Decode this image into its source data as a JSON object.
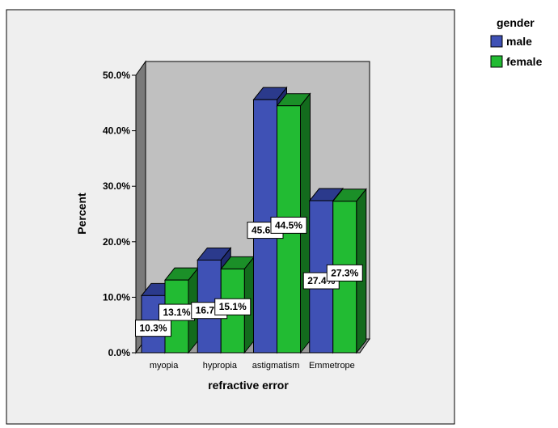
{
  "chart_data": {
    "type": "bar",
    "categories": [
      "myopia",
      "hypropia",
      "astigmatism",
      "Emmetrope"
    ],
    "series": [
      {
        "name": "male",
        "values": [
          10.3,
          16.7,
          45.6,
          27.4
        ],
        "labels": [
          "10.3%",
          "16.7%",
          "45.6%",
          "27.4%"
        ],
        "color": "#3f51b5",
        "top_color": "#2b3a8c",
        "side_color": "#1f2a6e"
      },
      {
        "name": "female",
        "values": [
          13.1,
          15.1,
          44.5,
          27.3
        ],
        "labels": [
          "13.1%",
          "15.1%",
          "44.5%",
          "27.3%"
        ],
        "color": "#22bb33",
        "top_color": "#1b8f28",
        "side_color": "#136b1d"
      }
    ],
    "xlabel": "refractive error",
    "ylabel": "Percent",
    "ylim": [
      0,
      50
    ],
    "yticks": [
      "0.0%",
      "10.0%",
      "20.0%",
      "30.0%",
      "40.0%",
      "50.0%"
    ],
    "legend_title": "gender",
    "legend_position": "top-right",
    "grid": false,
    "wall_color": "#c0c0c0",
    "frame_color": "#efefef"
  }
}
